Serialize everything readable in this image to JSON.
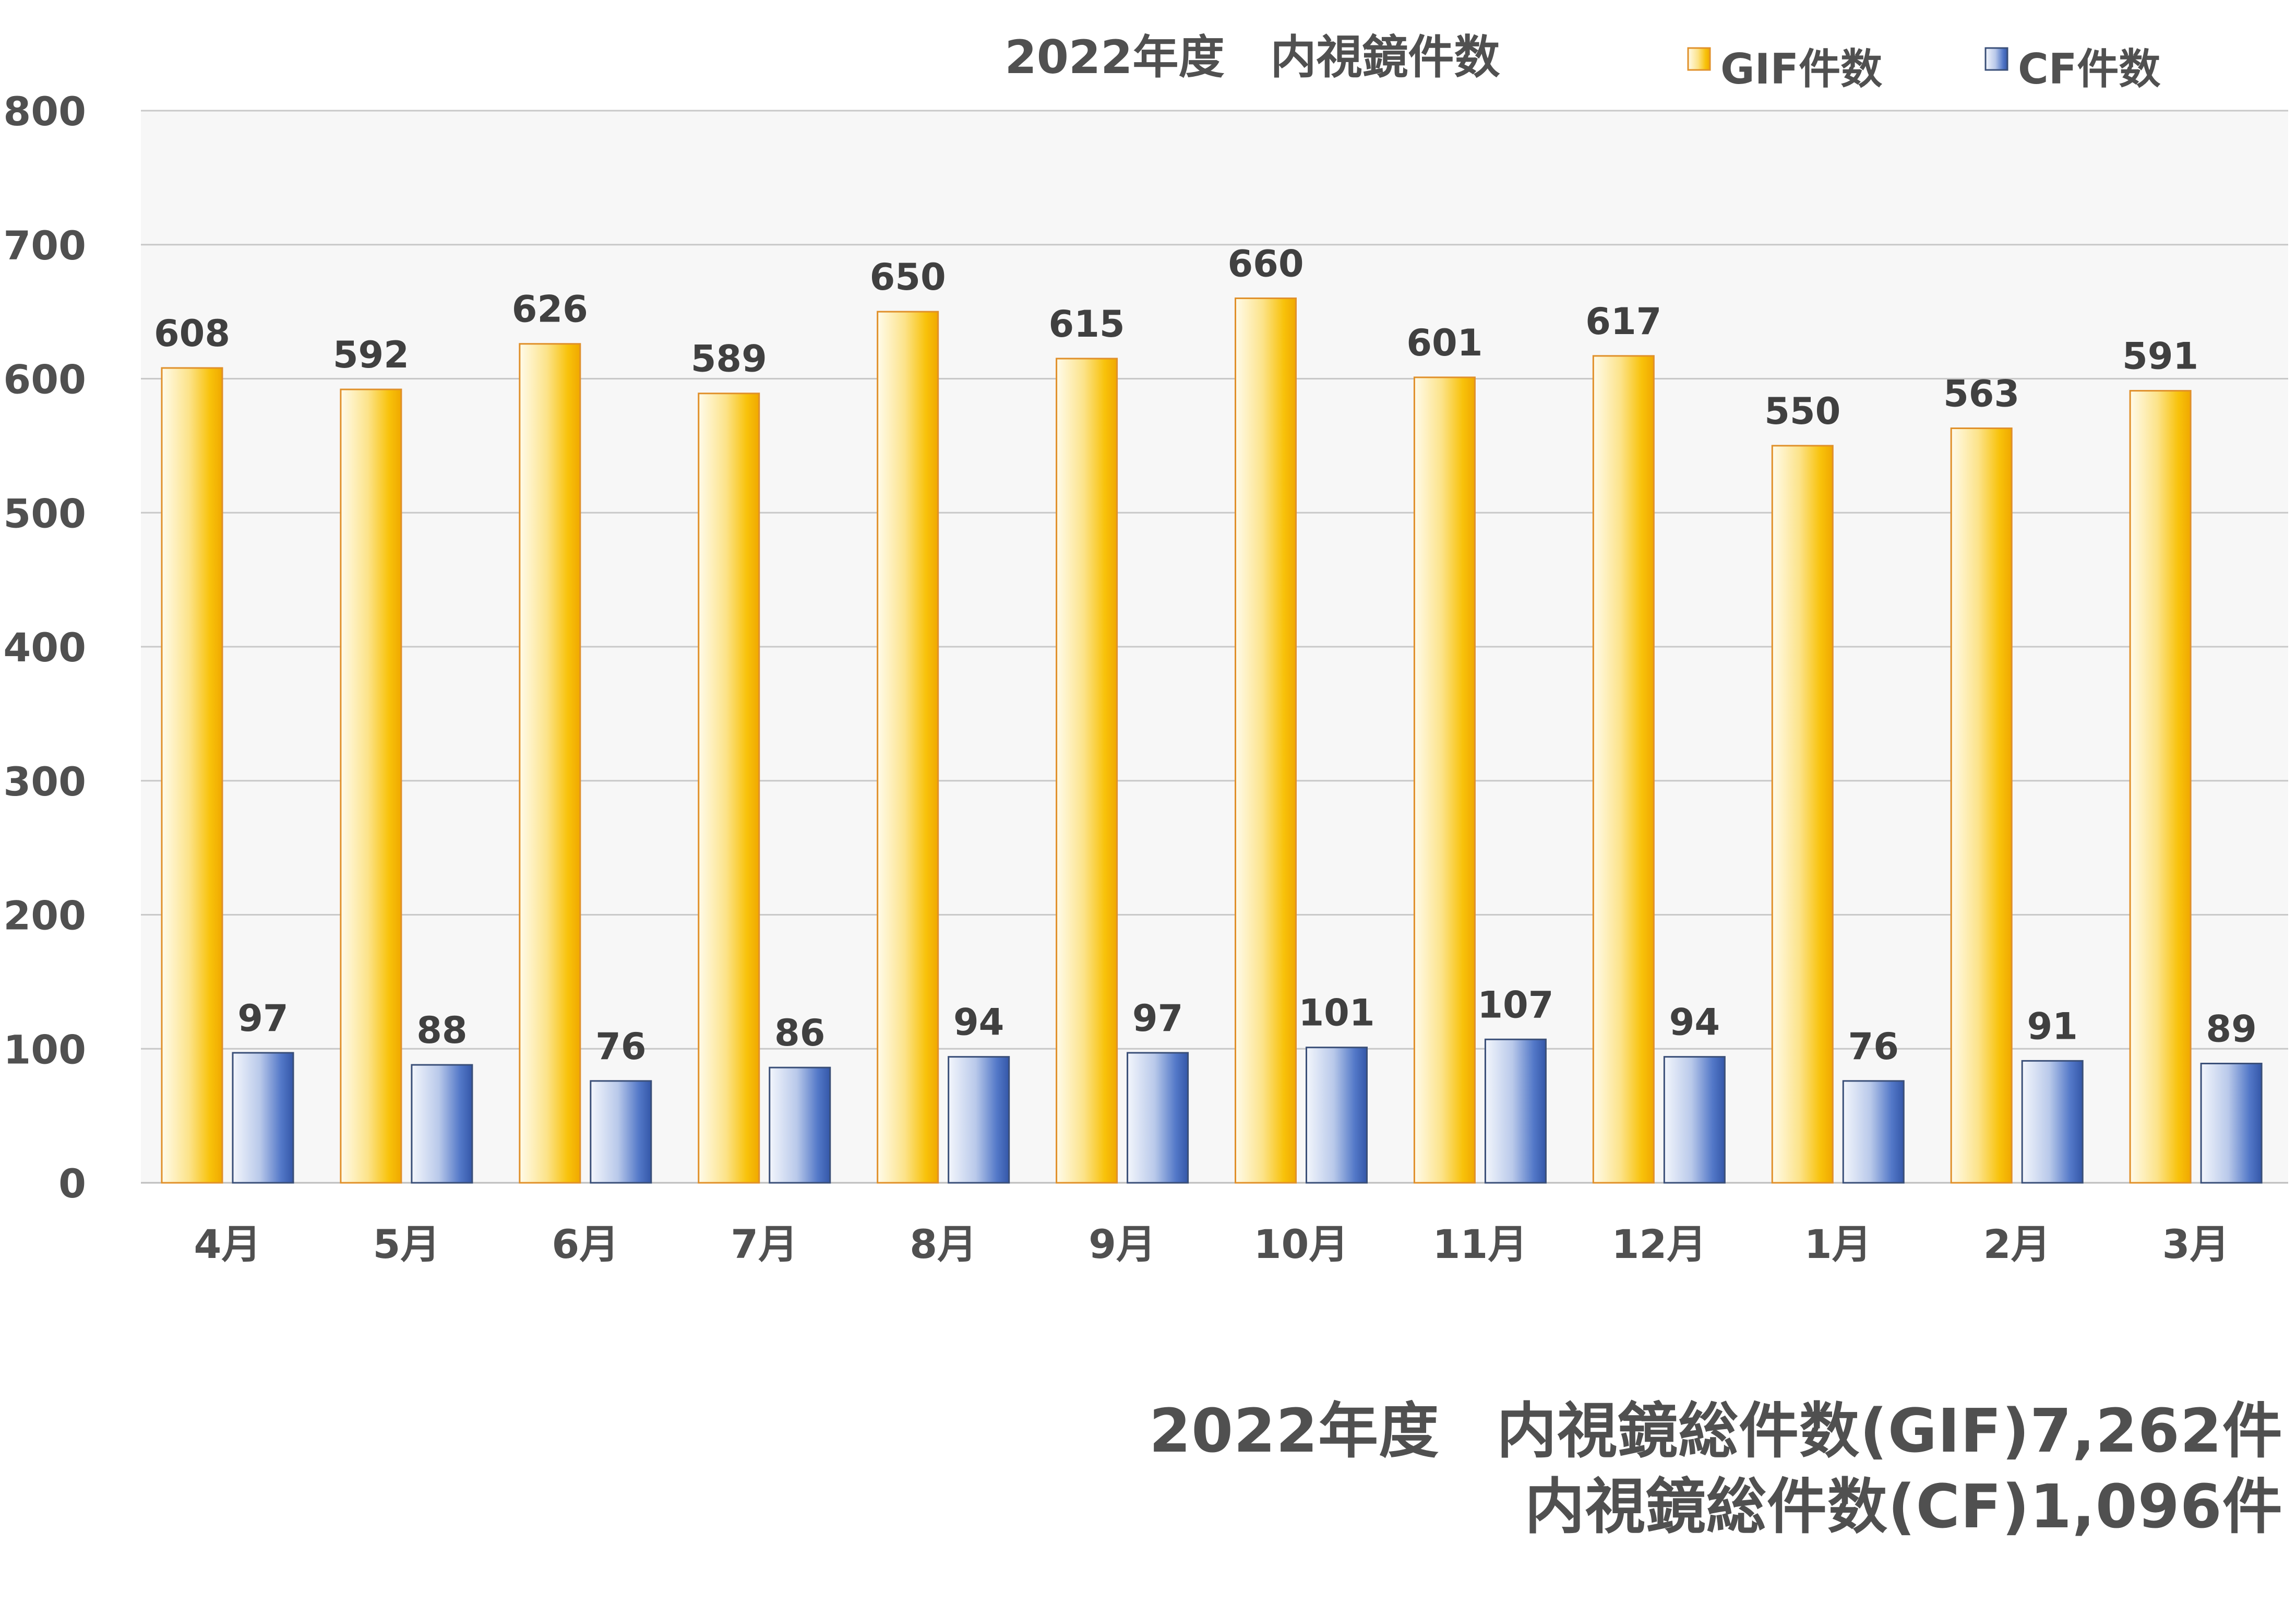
{
  "chart_data": {
    "type": "bar",
    "title": "2022年度　内視鏡件数",
    "categories": [
      "4月",
      "5月",
      "6月",
      "7月",
      "8月",
      "9月",
      "10月",
      "11月",
      "12月",
      "1月",
      "2月",
      "3月"
    ],
    "series": [
      {
        "name": "GIF件数",
        "values": [
          608,
          592,
          626,
          589,
          650,
          615,
          660,
          601,
          617,
          550,
          563,
          591
        ],
        "color": "#F5B800"
      },
      {
        "name": "CF件数",
        "values": [
          97,
          88,
          76,
          86,
          94,
          97,
          101,
          107,
          94,
          76,
          91,
          89
        ],
        "color": "#3F65B8"
      }
    ],
    "xlabel": "",
    "ylabel": "",
    "ylim": [
      0,
      800
    ],
    "yticks": [
      "0",
      "100",
      "200",
      "300",
      "400",
      "500",
      "600",
      "700",
      "800"
    ],
    "grid": true,
    "legend": "top-right",
    "data_labels": true
  },
  "summary": {
    "year_label": "2022年度",
    "gif_total_label": "内視鏡総件数(GIF)",
    "gif_total_value": "7,262件",
    "cf_total_label": "内視鏡総件数(CF)",
    "cf_total_value": "1,096件"
  }
}
